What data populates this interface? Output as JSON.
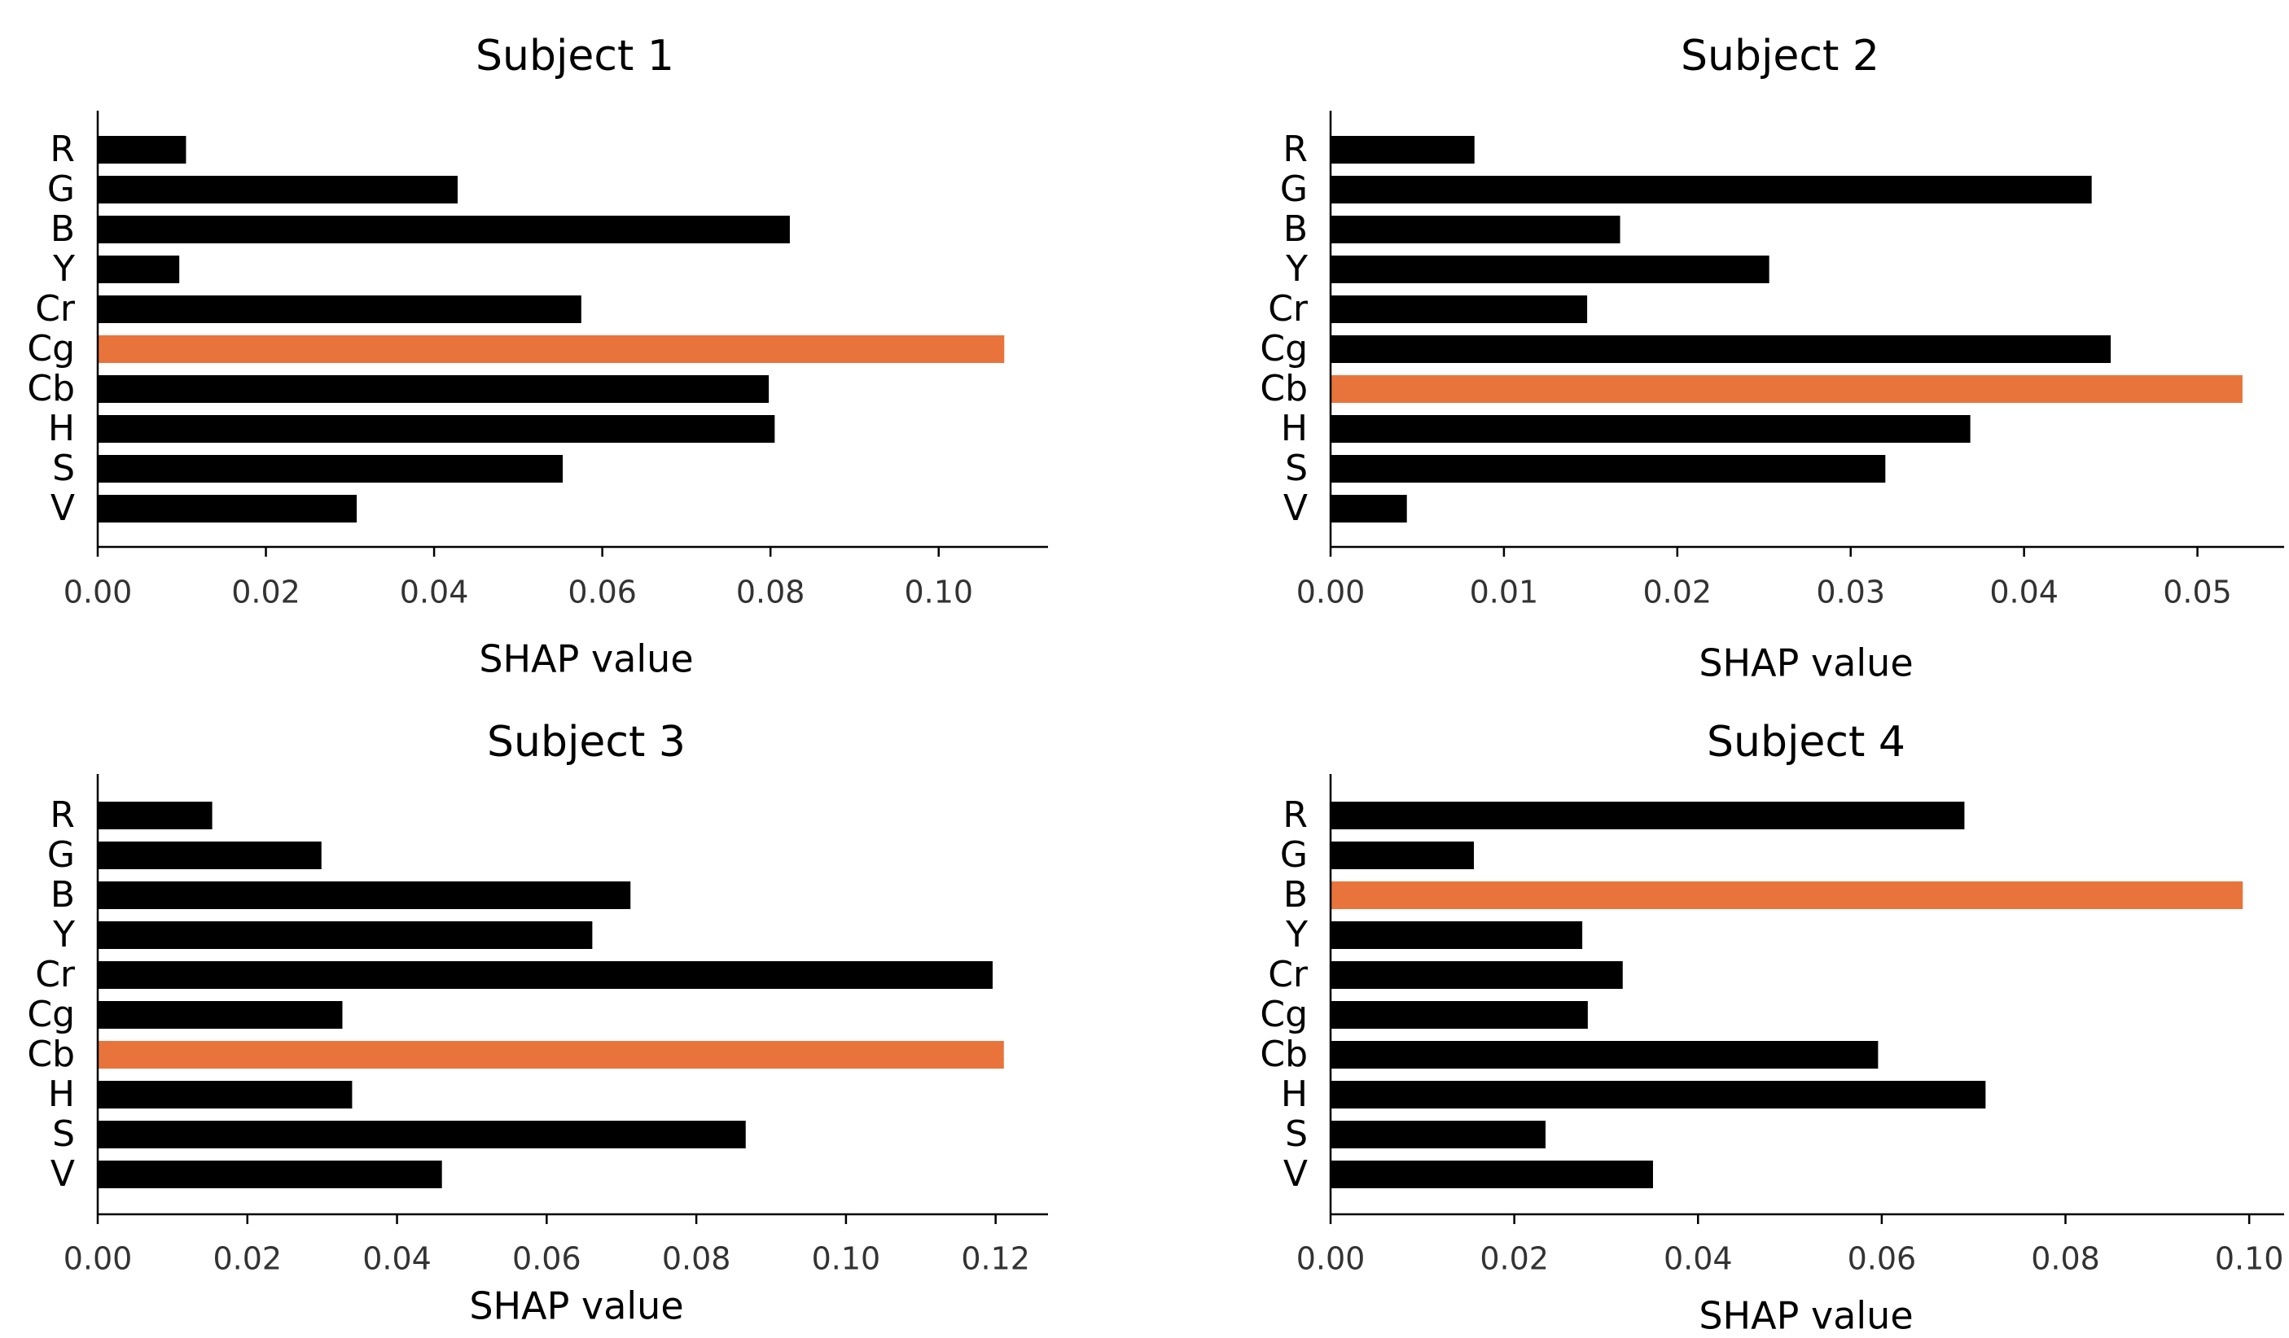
{
  "colors": {
    "bar": "#000000",
    "highlight": "#e8743b",
    "axis": "#000000",
    "tick_text": "#333333"
  },
  "chart_data": [
    {
      "type": "bar",
      "orientation": "horizontal",
      "title": "Subject 1",
      "xlabel": "SHAP value",
      "ylabel": "",
      "categories": [
        "R",
        "G",
        "B",
        "Y",
        "Cr",
        "Cg",
        "Cb",
        "H",
        "S",
        "V"
      ],
      "values": [
        0.0105,
        0.0428,
        0.0823,
        0.0097,
        0.0575,
        0.1078,
        0.0798,
        0.0805,
        0.0553,
        0.0308
      ],
      "highlight": "Cg",
      "xlim": [
        0,
        0.113
      ],
      "xticks": [
        0.0,
        0.02,
        0.04,
        0.06,
        0.08,
        0.1
      ],
      "xtick_labels": [
        "0.00",
        "0.02",
        "0.04",
        "0.06",
        "0.08",
        "0.10"
      ],
      "grid": false
    },
    {
      "type": "bar",
      "orientation": "horizontal",
      "title": "Subject 2",
      "xlabel": "SHAP value",
      "ylabel": "",
      "categories": [
        "R",
        "G",
        "B",
        "Y",
        "Cr",
        "Cg",
        "Cb",
        "H",
        "S",
        "V"
      ],
      "values": [
        0.0083,
        0.0439,
        0.0167,
        0.0253,
        0.0148,
        0.045,
        0.0526,
        0.0369,
        0.032,
        0.0044
      ],
      "highlight": "Cb",
      "xlim": [
        0,
        0.055
      ],
      "xticks": [
        0.0,
        0.01,
        0.02,
        0.03,
        0.04,
        0.05
      ],
      "xtick_labels": [
        "0.00",
        "0.01",
        "0.02",
        "0.03",
        "0.04",
        "0.05"
      ],
      "grid": false
    },
    {
      "type": "bar",
      "orientation": "horizontal",
      "title": "Subject 3",
      "xlabel": "SHAP value",
      "ylabel": "",
      "categories": [
        "R",
        "G",
        "B",
        "Y",
        "Cr",
        "Cg",
        "Cb",
        "H",
        "S",
        "V"
      ],
      "values": [
        0.0153,
        0.0299,
        0.0712,
        0.0661,
        0.1196,
        0.0327,
        0.1211,
        0.034,
        0.0866,
        0.046
      ],
      "highlight": "Cb",
      "xlim": [
        0,
        0.127
      ],
      "xticks": [
        0.0,
        0.02,
        0.04,
        0.06,
        0.08,
        0.1,
        0.12
      ],
      "xtick_labels": [
        "0.00",
        "0.02",
        "0.04",
        "0.06",
        "0.08",
        "0.10",
        "0.12"
      ],
      "grid": false
    },
    {
      "type": "bar",
      "orientation": "horizontal",
      "title": "Subject 4",
      "xlabel": "SHAP value",
      "ylabel": "",
      "categories": [
        "R",
        "G",
        "B",
        "Y",
        "Cr",
        "Cg",
        "Cb",
        "H",
        "S",
        "V"
      ],
      "values": [
        0.069,
        0.0156,
        0.0993,
        0.0274,
        0.0318,
        0.028,
        0.0596,
        0.0713,
        0.0234,
        0.0351
      ],
      "highlight": "B",
      "xlim": [
        0,
        0.1038
      ],
      "xticks": [
        0.0,
        0.02,
        0.04,
        0.06,
        0.08,
        0.1
      ],
      "xtick_labels": [
        "0.00",
        "0.02",
        "0.04",
        "0.06",
        "0.08",
        "0.10"
      ],
      "grid": false
    }
  ]
}
